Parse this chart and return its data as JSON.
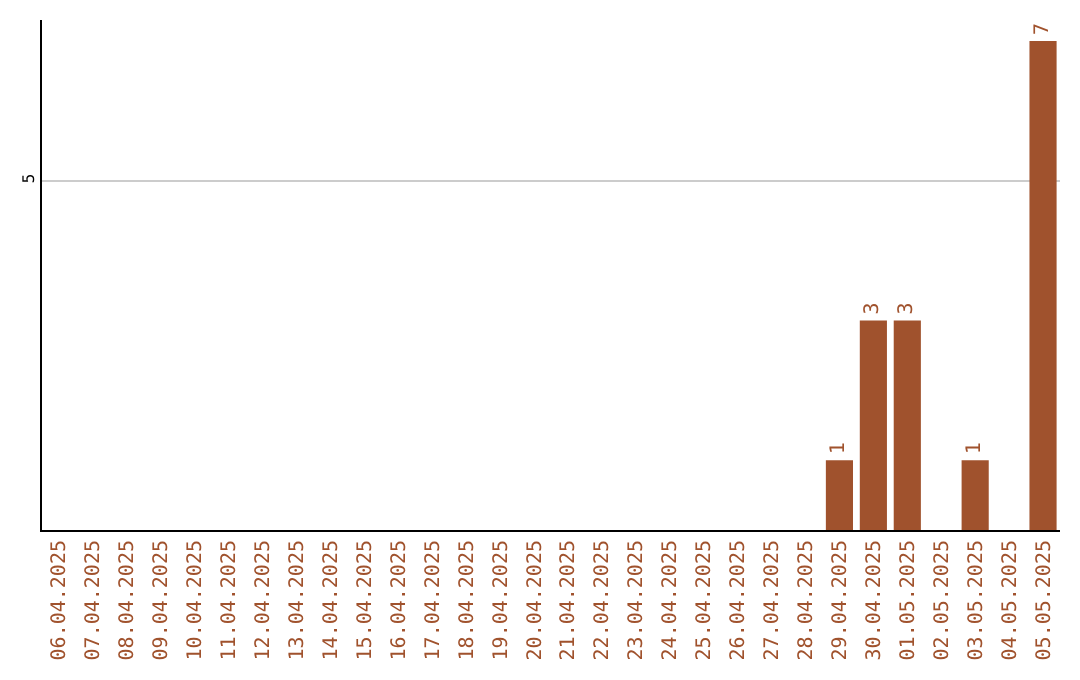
{
  "chart_data": {
    "type": "bar",
    "categories": [
      "06.04.2025",
      "07.04.2025",
      "08.04.2025",
      "09.04.2025",
      "10.04.2025",
      "11.04.2025",
      "12.04.2025",
      "13.04.2025",
      "14.04.2025",
      "15.04.2025",
      "16.04.2025",
      "17.04.2025",
      "18.04.2025",
      "19.04.2025",
      "20.04.2025",
      "21.04.2025",
      "22.04.2025",
      "23.04.2025",
      "24.04.2025",
      "25.04.2025",
      "26.04.2025",
      "27.04.2025",
      "28.04.2025",
      "29.04.2025",
      "30.04.2025",
      "01.05.2025",
      "02.05.2025",
      "03.05.2025",
      "04.05.2025",
      "05.05.2025"
    ],
    "values": [
      null,
      null,
      null,
      null,
      null,
      null,
      null,
      null,
      null,
      null,
      null,
      null,
      null,
      null,
      null,
      null,
      null,
      null,
      null,
      null,
      null,
      null,
      null,
      1,
      3,
      3,
      null,
      1,
      null,
      7
    ],
    "value_labels": [
      null,
      null,
      null,
      null,
      null,
      null,
      null,
      null,
      null,
      null,
      null,
      null,
      null,
      null,
      null,
      null,
      null,
      null,
      null,
      null,
      null,
      null,
      null,
      "1",
      "3",
      "3",
      null,
      "1",
      null,
      "7"
    ],
    "color": "#a0522d",
    "ylim": [
      0,
      7.3
    ],
    "yticks": [
      5
    ],
    "grid": "y",
    "legend": false
  }
}
